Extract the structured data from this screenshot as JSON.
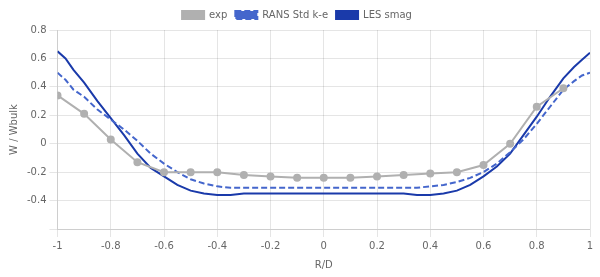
{
  "chart_data": {
    "type": "line",
    "x_label": "R/D",
    "y_label": "W / Wbulk",
    "xlim": [
      -1.0,
      1.0
    ],
    "ylim": [
      -0.6,
      0.8
    ],
    "xticks": [
      -1,
      -0.8,
      -0.6,
      -0.4,
      -0.2,
      0,
      0.2,
      0.4,
      0.6,
      0.8,
      1
    ],
    "yticks": [
      {
        "value": -0.6,
        "label": ""
      },
      -0.4,
      -0.2,
      0,
      0.2,
      0.4,
      0.6,
      0.8
    ],
    "grid": true,
    "legend": "top",
    "series": [
      {
        "name": "exp",
        "color": "#b0b0b0",
        "marker": "circle",
        "line_style": "solid",
        "x": [
          -1.0,
          -0.9,
          -0.8,
          -0.7,
          -0.6,
          -0.5,
          -0.4,
          -0.3,
          -0.2,
          -0.1,
          0.0,
          0.1,
          0.2,
          0.3,
          0.4,
          0.5,
          0.6,
          0.7,
          0.8,
          0.9
        ],
        "values": [
          0.34,
          0.21,
          0.03,
          -0.13,
          -0.2,
          -0.2,
          -0.2,
          -0.22,
          -0.23,
          -0.24,
          -0.24,
          -0.24,
          -0.23,
          -0.22,
          -0.21,
          -0.2,
          -0.15,
          0.0,
          0.26,
          0.39
        ]
      },
      {
        "name": "RANS Std k-e",
        "color": "#4466cc",
        "line_style": "dashed",
        "x": [
          -1.0,
          -0.97,
          -0.94,
          -0.9,
          -0.85,
          -0.8,
          -0.75,
          -0.7,
          -0.65,
          -0.6,
          -0.55,
          -0.5,
          -0.45,
          -0.4,
          -0.35,
          -0.3,
          -0.25,
          -0.2,
          -0.15,
          -0.1,
          -0.05,
          0.0,
          0.05,
          0.1,
          0.15,
          0.2,
          0.25,
          0.3,
          0.35,
          0.4,
          0.45,
          0.5,
          0.55,
          0.6,
          0.65,
          0.7,
          0.75,
          0.8,
          0.85,
          0.9,
          0.94,
          0.97,
          1.0
        ],
        "values": [
          0.5,
          0.45,
          0.38,
          0.33,
          0.24,
          0.17,
          0.1,
          0.02,
          -0.07,
          -0.14,
          -0.2,
          -0.25,
          -0.28,
          -0.3,
          -0.31,
          -0.31,
          -0.31,
          -0.31,
          -0.31,
          -0.31,
          -0.31,
          -0.31,
          -0.31,
          -0.31,
          -0.31,
          -0.31,
          -0.31,
          -0.31,
          -0.31,
          -0.3,
          -0.29,
          -0.27,
          -0.24,
          -0.2,
          -0.14,
          -0.06,
          0.03,
          0.14,
          0.26,
          0.38,
          0.44,
          0.48,
          0.5
        ]
      },
      {
        "name": "LES smag",
        "color": "#1a3aaa",
        "line_style": "solid",
        "x": [
          -1.0,
          -0.97,
          -0.94,
          -0.9,
          -0.85,
          -0.8,
          -0.75,
          -0.7,
          -0.65,
          -0.6,
          -0.55,
          -0.5,
          -0.45,
          -0.4,
          -0.35,
          -0.3,
          -0.25,
          -0.2,
          -0.15,
          -0.1,
          -0.05,
          0.0,
          0.05,
          0.1,
          0.15,
          0.2,
          0.25,
          0.3,
          0.35,
          0.4,
          0.45,
          0.5,
          0.55,
          0.6,
          0.65,
          0.7,
          0.75,
          0.8,
          0.85,
          0.9,
          0.94,
          0.97,
          1.0
        ],
        "values": [
          0.65,
          0.6,
          0.52,
          0.43,
          0.3,
          0.18,
          0.06,
          -0.07,
          -0.17,
          -0.23,
          -0.29,
          -0.33,
          -0.35,
          -0.36,
          -0.36,
          -0.35,
          -0.35,
          -0.35,
          -0.35,
          -0.35,
          -0.35,
          -0.35,
          -0.35,
          -0.35,
          -0.35,
          -0.35,
          -0.35,
          -0.35,
          -0.36,
          -0.36,
          -0.35,
          -0.33,
          -0.29,
          -0.23,
          -0.16,
          -0.07,
          0.06,
          0.19,
          0.33,
          0.46,
          0.54,
          0.59,
          0.64
        ]
      }
    ]
  }
}
